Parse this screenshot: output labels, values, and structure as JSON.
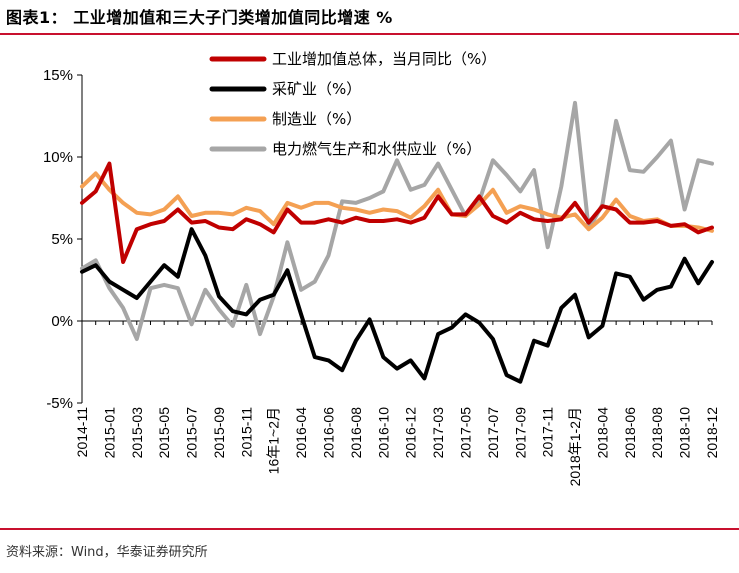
{
  "header": {
    "title": "图表1：  工业增加值和三大子门类增加值同比增速  %"
  },
  "footer": {
    "source": "资料来源：Wind，华泰证券研究所"
  },
  "colors": {
    "rule": "#c8102e",
    "industry": "#c00000",
    "mining": "#000000",
    "manufacturing": "#f4a053",
    "utilities": "#a6a6a6"
  },
  "chart_data": {
    "type": "line",
    "title": "工业增加值和三大子门类增加值同比增速  %",
    "xlabel": "",
    "ylabel": "%",
    "ylim": [
      -5,
      15
    ],
    "yticks": [
      -5,
      0,
      5,
      10,
      15
    ],
    "ytick_labels": [
      "-5%",
      "0%",
      "5%",
      "10%",
      "15%"
    ],
    "grid": false,
    "legend_position": "top",
    "x": [
      "2014-11",
      "2014-12",
      "2015-01",
      "2015-02",
      "2015-03",
      "2015-04",
      "2015-05",
      "2015-06",
      "2015-07",
      "2015-08",
      "2015-09",
      "2015-10",
      "2015-11",
      "2015-12",
      "16年1~2月",
      "2016-03",
      "2016-04",
      "2016-05",
      "2016-06",
      "2016-07",
      "2016-08",
      "2016-09",
      "2016-10",
      "2016-11",
      "2016-12",
      "2017-01",
      "2017-03",
      "2017-04",
      "2017-05",
      "2017-06",
      "2017-07",
      "2017-08",
      "2017-09",
      "2017-10",
      "2017-11",
      "2017-12",
      "2018年1-2月",
      "2018-03",
      "2018-04",
      "2018-05",
      "2018-06",
      "2018-07",
      "2018-08",
      "2018-09",
      "2018-10",
      "2018-11",
      "2018-12"
    ],
    "xtick_labels": [
      "2014-11",
      "2015-01",
      "2015-03",
      "2015-05",
      "2015-07",
      "2015-09",
      "2015-11",
      "16年1~2月",
      "2016-04",
      "2016-06",
      "2016-08",
      "2016-10",
      "2016-12",
      "2017-03",
      "2017-05",
      "2017-07",
      "2017-09",
      "2017-11",
      "2018年1-2月",
      "2018-04",
      "2018-06",
      "2018-08",
      "2018-10",
      "2018-12"
    ],
    "xtick_index": [
      0,
      2,
      4,
      6,
      8,
      10,
      12,
      14,
      16,
      18,
      20,
      22,
      24,
      26,
      28,
      30,
      32,
      34,
      36,
      38,
      40,
      42,
      44,
      46
    ],
    "series": [
      {
        "name": "工业增加值总体，当月同比（%）",
        "key": "industry",
        "values": [
          7.2,
          7.9,
          9.6,
          3.6,
          5.6,
          5.9,
          6.1,
          6.8,
          6.0,
          6.1,
          5.7,
          5.6,
          6.2,
          5.9,
          5.4,
          6.8,
          6.0,
          6.0,
          6.2,
          6.0,
          6.3,
          6.1,
          6.1,
          6.2,
          6.0,
          6.3,
          7.6,
          6.5,
          6.5,
          7.6,
          6.4,
          6.0,
          6.6,
          6.2,
          6.1,
          6.2,
          7.2,
          6.0,
          7.0,
          6.8,
          6.0,
          6.0,
          6.1,
          5.8,
          5.9,
          5.4,
          5.7
        ]
      },
      {
        "name": "采矿业（%）",
        "key": "mining",
        "values": [
          3.0,
          3.4,
          2.4,
          1.9,
          1.4,
          2.4,
          3.4,
          2.7,
          5.6,
          4.0,
          1.5,
          0.6,
          0.4,
          1.3,
          1.6,
          3.1,
          0.4,
          -2.2,
          -2.4,
          -3.0,
          -1.2,
          0.1,
          -2.2,
          -2.9,
          -2.4,
          -3.5,
          -0.8,
          -0.4,
          0.4,
          -0.1,
          -1.1,
          -3.3,
          -3.7,
          -1.2,
          -1.5,
          0.8,
          1.6,
          -1.0,
          -0.3,
          2.9,
          2.7,
          1.3,
          1.9,
          2.1,
          3.8,
          2.3,
          3.6
        ]
      },
      {
        "name": "制造业（%）",
        "key": "manufacturing",
        "values": [
          8.2,
          9.0,
          8.0,
          7.2,
          6.6,
          6.5,
          6.8,
          7.6,
          6.4,
          6.6,
          6.6,
          6.5,
          6.9,
          6.7,
          5.9,
          7.2,
          6.9,
          7.2,
          7.2,
          6.9,
          6.8,
          6.6,
          6.8,
          6.7,
          6.3,
          7.0,
          8.0,
          6.5,
          6.4,
          7.1,
          8.0,
          6.6,
          7.0,
          6.8,
          6.5,
          6.3,
          6.5,
          5.6,
          6.3,
          7.4,
          6.4,
          6.1,
          6.2,
          5.8,
          5.8,
          5.7,
          5.5
        ]
      },
      {
        "name": "电力燃气生产和水供应业（%）",
        "key": "utilities",
        "values": [
          3.2,
          3.7,
          2.0,
          0.8,
          -1.1,
          2.0,
          2.2,
          2.0,
          -0.2,
          1.9,
          0.7,
          -0.3,
          2.2,
          -0.8,
          1.5,
          4.8,
          1.9,
          2.4,
          4.0,
          7.3,
          7.2,
          7.5,
          7.9,
          9.8,
          8.0,
          8.3,
          9.6,
          8.0,
          6.4,
          7.3,
          9.8,
          8.9,
          7.9,
          9.2,
          4.5,
          8.2,
          13.3,
          5.6,
          7.1,
          12.2,
          9.2,
          9.1,
          10.0,
          11.0,
          6.8,
          9.8,
          9.6
        ]
      }
    ]
  }
}
